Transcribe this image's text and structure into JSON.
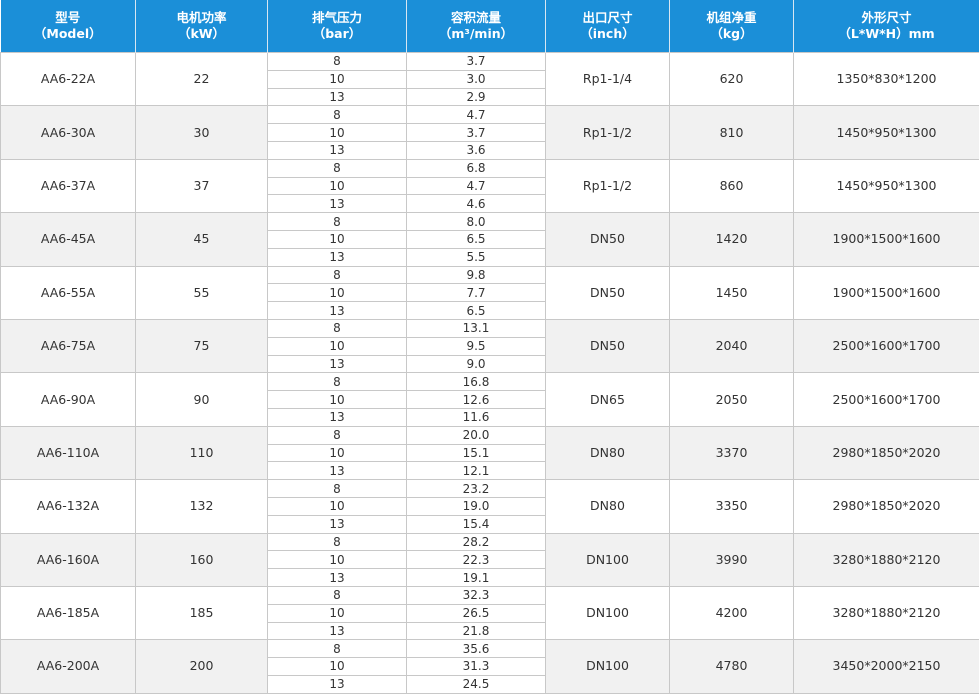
{
  "table": {
    "columns": [
      {
        "label": "型号",
        "unit": "（Model）"
      },
      {
        "label": "电机功率",
        "unit": "（kW）"
      },
      {
        "label": "排气压力",
        "unit": "（bar）"
      },
      {
        "label": "容积流量",
        "unit": "（m³/min）"
      },
      {
        "label": "出口尺寸",
        "unit": "（inch）"
      },
      {
        "label": "机组净重",
        "unit": "（kg）"
      },
      {
        "label": "外形尺寸",
        "unit": "（L*W*H）mm"
      }
    ],
    "rows": [
      {
        "model": "AA6-22A",
        "power": "22",
        "pressures": [
          "8",
          "10",
          "13"
        ],
        "flows": [
          "3.7",
          "3.0",
          "2.9"
        ],
        "outlet": "Rp1-1/4",
        "weight": "620",
        "dimensions": "1350*830*1200"
      },
      {
        "model": "AA6-30A",
        "power": "30",
        "pressures": [
          "8",
          "10",
          "13"
        ],
        "flows": [
          "4.7",
          "3.7",
          "3.6"
        ],
        "outlet": "Rp1-1/2",
        "weight": "810",
        "dimensions": "1450*950*1300"
      },
      {
        "model": "AA6-37A",
        "power": "37",
        "pressures": [
          "8",
          "10",
          "13"
        ],
        "flows": [
          "6.8",
          "4.7",
          "4.6"
        ],
        "outlet": "Rp1-1/2",
        "weight": "860",
        "dimensions": "1450*950*1300"
      },
      {
        "model": "AA6-45A",
        "power": "45",
        "pressures": [
          "8",
          "10",
          "13"
        ],
        "flows": [
          "8.0",
          "6.5",
          "5.5"
        ],
        "outlet": "DN50",
        "weight": "1420",
        "dimensions": "1900*1500*1600"
      },
      {
        "model": "AA6-55A",
        "power": "55",
        "pressures": [
          "8",
          "10",
          "13"
        ],
        "flows": [
          "9.8",
          "7.7",
          "6.5"
        ],
        "outlet": "DN50",
        "weight": "1450",
        "dimensions": "1900*1500*1600"
      },
      {
        "model": "AA6-75A",
        "power": "75",
        "pressures": [
          "8",
          "10",
          "13"
        ],
        "flows": [
          "13.1",
          "9.5",
          "9.0"
        ],
        "outlet": "DN50",
        "weight": "2040",
        "dimensions": "2500*1600*1700"
      },
      {
        "model": "AA6-90A",
        "power": "90",
        "pressures": [
          "8",
          "10",
          "13"
        ],
        "flows": [
          "16.8",
          "12.6",
          "11.6"
        ],
        "outlet": "DN65",
        "weight": "2050",
        "dimensions": "2500*1600*1700"
      },
      {
        "model": "AA6-110A",
        "power": "110",
        "pressures": [
          "8",
          "10",
          "13"
        ],
        "flows": [
          "20.0",
          "15.1",
          "12.1"
        ],
        "outlet": "DN80",
        "weight": "3370",
        "dimensions": "2980*1850*2020"
      },
      {
        "model": "AA6-132A",
        "power": "132",
        "pressures": [
          "8",
          "10",
          "13"
        ],
        "flows": [
          "23.2",
          "19.0",
          "15.4"
        ],
        "outlet": "DN80",
        "weight": "3350",
        "dimensions": "2980*1850*2020"
      },
      {
        "model": "AA6-160A",
        "power": "160",
        "pressures": [
          "8",
          "10",
          "13"
        ],
        "flows": [
          "28.2",
          "22.3",
          "19.1"
        ],
        "outlet": "DN100",
        "weight": "3990",
        "dimensions": "3280*1880*2120"
      },
      {
        "model": "AA6-185A",
        "power": "185",
        "pressures": [
          "8",
          "10",
          "13"
        ],
        "flows": [
          "32.3",
          "26.5",
          "21.8"
        ],
        "outlet": "DN100",
        "weight": "4200",
        "dimensions": "3280*1880*2120"
      },
      {
        "model": "AA6-200A",
        "power": "200",
        "pressures": [
          "8",
          "10",
          "13"
        ],
        "flows": [
          "35.6",
          "31.3",
          "24.5"
        ],
        "outlet": "DN100",
        "weight": "4780",
        "dimensions": "3450*2000*2150"
      }
    ]
  }
}
